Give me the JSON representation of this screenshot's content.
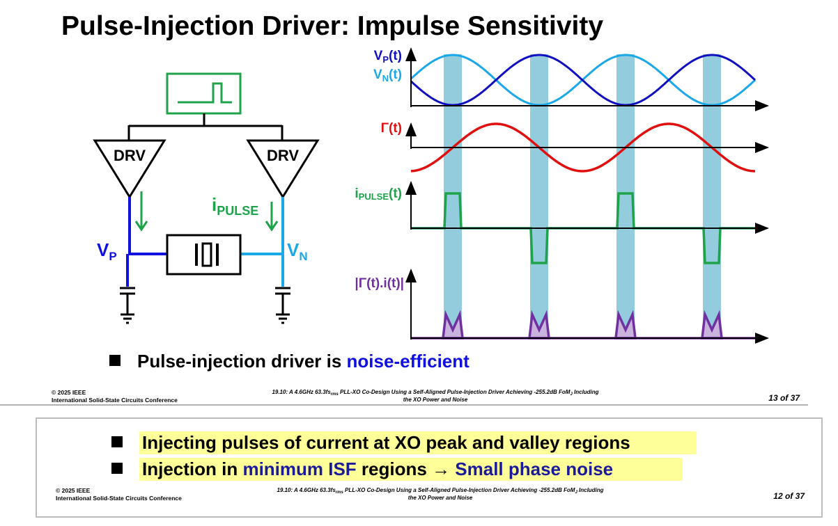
{
  "title": "Pulse-Injection Driver: Impulse Sensitivity",
  "circuit": {
    "drivers": [
      "DRV",
      "DRV"
    ],
    "current": {
      "symbol": "i",
      "subscript": "PULSE"
    },
    "node_p": {
      "symbol": "V",
      "subscript": "P"
    },
    "node_n": {
      "symbol": "V",
      "subscript": "N"
    }
  },
  "waveforms": [
    {
      "symbol": "V",
      "subscript": "P",
      "suffix": "(t)"
    },
    {
      "symbol": "V",
      "subscript": "N",
      "suffix": "(t)"
    },
    {
      "label": "Γ(t)"
    },
    {
      "symbol": "i",
      "subscript": "PULSE",
      "suffix": "(t)"
    },
    {
      "label": "|Γ(t).i(t)|"
    }
  ],
  "slide_13": {
    "bullet": {
      "text": "Pulse-injection driver is ",
      "highlight": "noise-efficient"
    },
    "footer": {
      "copyright": "© 2025 IEEE",
      "conference": "International Solid-State Circuits Conference",
      "paper_line1": [
        "19.10: A 4.6GHz 63.3fs",
        "rms",
        " PLL-XO Co-Design Using a Self-Aligned Pulse-Injection Driver Achieving -255.2dB FoM",
        "J",
        " Including"
      ],
      "paper_line2": "the XO Power and Noise",
      "page": "13 of 37"
    }
  },
  "slide_12": {
    "bullets": [
      [
        "Injecting pulses of current at XO peak and valley regions"
      ],
      [
        "Injection in ",
        "minimum ISF",
        " regions → ",
        "Small phase noise"
      ]
    ],
    "footer": {
      "copyright": "© 2025 IEEE",
      "conference": "International Solid-State Circuits Conference",
      "paper_line1": [
        "19.10: A 4.6GHz 63.3fs",
        "rms",
        " PLL-XO Co-Design Using a Self-Aligned Pulse-Injection Driver Achieving -255.2dB FoM",
        "J",
        " Including"
      ],
      "paper_line2": "the XO Power and Noise",
      "page": "12 of 37"
    }
  }
}
